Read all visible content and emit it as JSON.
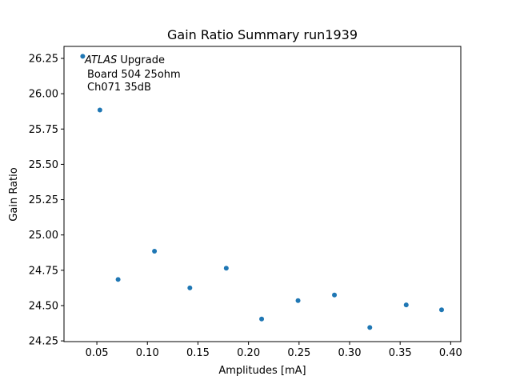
{
  "chart_data": {
    "type": "scatter",
    "title": "Gain Ratio Summary run1939",
    "xlabel": "Amplitudes [mA]",
    "ylabel": "Gain Ratio",
    "xlim": [
      0.0175,
      0.41
    ],
    "ylim": [
      24.245,
      26.335
    ],
    "xticks": [
      0.05,
      0.1,
      0.15,
      0.2,
      0.25,
      0.3,
      0.35,
      0.4
    ],
    "xtick_labels": [
      "0.05",
      "0.10",
      "0.15",
      "0.20",
      "0.25",
      "0.30",
      "0.35",
      "0.40"
    ],
    "yticks": [
      24.25,
      24.5,
      24.75,
      25.0,
      25.25,
      25.5,
      25.75,
      26.0,
      26.25
    ],
    "ytick_labels": [
      "24.25",
      "24.50",
      "24.75",
      "25.00",
      "25.25",
      "25.50",
      "25.75",
      "26.00",
      "26.25"
    ],
    "grid": false,
    "marker_color": "#1f77b4",
    "series": [
      {
        "x": [
          0.036,
          0.053,
          0.071,
          0.107,
          0.142,
          0.178,
          0.213,
          0.249,
          0.285,
          0.32,
          0.356,
          0.391
        ],
        "y": [
          26.265,
          25.885,
          24.685,
          24.885,
          24.625,
          24.765,
          24.405,
          24.535,
          24.575,
          24.345,
          24.505,
          24.47
        ]
      }
    ],
    "annotation": {
      "italic": "ATLAS",
      "rest": " Upgrade",
      "line2": "Board 504 25ohm",
      "line3": "Ch071 35dB"
    }
  }
}
